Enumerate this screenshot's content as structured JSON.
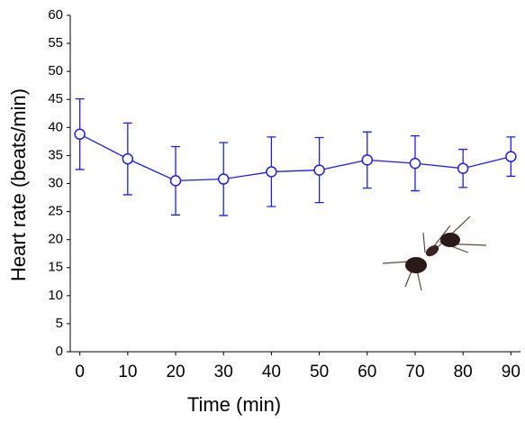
{
  "chart_data": {
    "type": "line",
    "xlabel": "Time (min)",
    "ylabel": "Heart rate (beats/min)",
    "x": [
      0,
      10,
      20,
      30,
      40,
      50,
      60,
      70,
      80,
      90
    ],
    "values": [
      38.8,
      34.4,
      30.5,
      30.8,
      32.1,
      32.4,
      34.2,
      33.6,
      32.7,
      34.8
    ],
    "errors": [
      6.3,
      6.4,
      6.1,
      6.5,
      6.2,
      5.8,
      5.0,
      4.9,
      3.4,
      3.5
    ],
    "color": "#1f1fe6",
    "xlim": [
      -2,
      92
    ],
    "xticks": [
      0,
      10,
      20,
      30,
      40,
      50,
      60,
      70,
      80,
      90
    ],
    "ylim": [
      0,
      60
    ],
    "yticks": [
      0,
      5,
      10,
      15,
      20,
      25,
      30,
      35,
      40,
      45,
      50,
      55,
      60
    ]
  }
}
